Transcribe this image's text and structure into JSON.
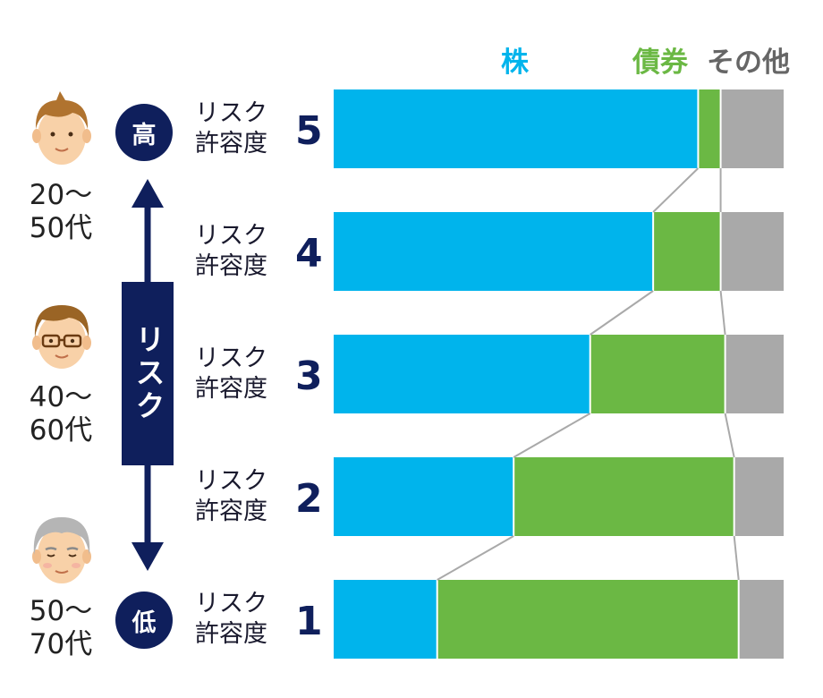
{
  "chart_data": {
    "type": "bar",
    "stacked": true,
    "orientation": "horizontal",
    "categories": [
      "5",
      "4",
      "3",
      "2",
      "1"
    ],
    "row_label": "リスク\n許容度",
    "series": [
      {
        "name": "株",
        "color": "#00b4ec",
        "values": [
          81,
          71,
          57,
          40,
          23
        ]
      },
      {
        "name": "債券",
        "color": "#6bb844",
        "values": [
          5,
          15,
          30,
          49,
          67
        ]
      },
      {
        "name": "その他",
        "color": "#a9a9a9",
        "values": [
          14,
          14,
          13,
          11,
          10
        ]
      }
    ],
    "xlim": [
      0,
      100
    ],
    "connector_lines": true,
    "legend_position": "top-right"
  },
  "risk_axis": {
    "label": "リスク",
    "high": "高",
    "low": "低"
  },
  "age_groups": [
    {
      "line1": "20～",
      "line2": "50代",
      "face": "young-man-icon"
    },
    {
      "line1": "40～",
      "line2": "60代",
      "face": "glasses-man-icon"
    },
    {
      "line1": "50～",
      "line2": "70代",
      "face": "senior-man-icon"
    }
  ],
  "rows": [
    {
      "label1": "リスク",
      "label2": "許容度",
      "num": "5"
    },
    {
      "label1": "リスク",
      "label2": "許容度",
      "num": "4"
    },
    {
      "label1": "リスク",
      "label2": "許容度",
      "num": "3"
    },
    {
      "label1": "リスク",
      "label2": "許容度",
      "num": "2"
    },
    {
      "label1": "リスク",
      "label2": "許容度",
      "num": "1"
    }
  ],
  "colors": {
    "stock": "#00b4ec",
    "bond": "#6bb844",
    "other": "#a9a9a9",
    "navy": "#0f1f5c",
    "legend_other": "#666666"
  }
}
